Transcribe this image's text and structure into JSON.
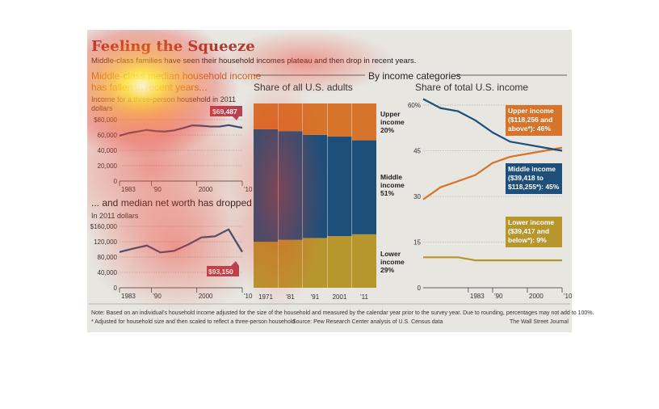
{
  "header": {
    "title": "Feeling the Squeeze",
    "subtitle": "Middle-class families have seen their household incomes plateau and then drop in recent years."
  },
  "left_top": {
    "heading_line1": "Middle-class median household income",
    "heading_line2": "has fallen in recent years...",
    "unit_line1": "Income for a three-person household in 2011",
    "unit_line2": "dollars",
    "callout": "$69,487"
  },
  "left_bottom": {
    "heading": "... and median net worth has dropped",
    "unit": "In 2011 dollars",
    "callout": "$93,150"
  },
  "right_section": {
    "heading": "By income categories",
    "middle_subhead": "Share of all U.S. adults",
    "right_subhead": "Share of total U.S. income"
  },
  "bar_labels": {
    "upper": [
      "Upper",
      "income",
      "20%"
    ],
    "middle": [
      "Middle",
      "income",
      "51%"
    ],
    "lower": [
      "Lower",
      "income",
      "29%"
    ]
  },
  "line_callouts": {
    "upper": [
      "Upper income",
      "($118,256 and",
      "above*): 46%"
    ],
    "middle": [
      "Middle income",
      "($39,418 to",
      "$118,255*): 45%"
    ],
    "lower": [
      "Lower income",
      "($39,417 and",
      "below*): 9%"
    ]
  },
  "footer": {
    "note": "Note: Based on an individual's household income adjusted for the size of the household and measured by the calendar year prior to the survey year. Due to rounding, percentages may not add to 100%.",
    "footnote": "* Adjusted for household size and then scaled to reflect a three-person household",
    "source": "Source: Pew Research Center analysis of U.S. Census data",
    "credit": "The Wall Street Journal"
  },
  "colors": {
    "upper": "#d6742b",
    "middle": "#1d4f7a",
    "lower": "#b8962e",
    "line": "#2f4f77",
    "callout_red": "#b64250",
    "title_red": "#b03a2e"
  },
  "chart_data": [
    {
      "type": "line",
      "x": [
        1983,
        1985,
        1987,
        1989,
        1991,
        1993,
        1995,
        1997,
        1999,
        2001,
        2003,
        2005,
        2007,
        2009,
        2010
      ],
      "series": [
        {
          "values": [
            59000,
            62500,
            64500,
            66500,
            65000,
            64500,
            66000,
            69000,
            72500,
            72000,
            71000,
            71000,
            72800,
            70500,
            69487
          ]
        }
      ],
      "ylim": [
        0,
        80000
      ],
      "yticks": [
        "$80,000",
        "60,000",
        "40,000",
        "20,000",
        "0"
      ],
      "xticks": [
        "1983",
        "'90",
        "2000",
        "'10"
      ]
    },
    {
      "type": "line",
      "x": [
        1983,
        1986,
        1989,
        1992,
        1995,
        1998,
        2001,
        2004,
        2007,
        2010
      ],
      "series": [
        {
          "values": [
            93000,
            102000,
            110000,
            92000,
            96000,
            112000,
            131000,
            134000,
            152000,
            93150
          ]
        }
      ],
      "ylim": [
        0,
        160000
      ],
      "yticks": [
        "$160,000",
        "120,000",
        "80,000",
        "40,000",
        "0"
      ],
      "xticks": [
        "1983",
        "'90",
        "2000",
        "'10"
      ]
    },
    {
      "type": "bar",
      "categories": [
        "1971",
        "'81",
        "'91",
        "2001",
        "'11"
      ],
      "series": [
        {
          "name": "Lower income",
          "values": [
            25,
            26,
            27,
            28,
            29
          ]
        },
        {
          "name": "Middle income",
          "values": [
            61,
            59,
            56,
            54,
            51
          ]
        },
        {
          "name": "Upper income",
          "values": [
            14,
            15,
            17,
            18,
            20
          ]
        }
      ],
      "ylim": [
        0,
        100
      ]
    },
    {
      "type": "line",
      "x": [
        1970,
        1975,
        1980,
        1985,
        1990,
        1995,
        2000,
        2005,
        2010
      ],
      "series": [
        {
          "name": "Upper income",
          "values": [
            29,
            33,
            35,
            37,
            41,
            43,
            44,
            45,
            46
          ]
        },
        {
          "name": "Middle income",
          "values": [
            62,
            59,
            58,
            55,
            51,
            48,
            47,
            46,
            45
          ]
        },
        {
          "name": "Lower income",
          "values": [
            10,
            10,
            10,
            9,
            9,
            9,
            9,
            9,
            9
          ]
        }
      ],
      "ylim": [
        0,
        60
      ],
      "yticks": [
        "60%",
        "45",
        "30",
        "15",
        "0"
      ],
      "xticks": [
        "1983",
        "'90",
        "2000",
        "'10"
      ]
    }
  ]
}
